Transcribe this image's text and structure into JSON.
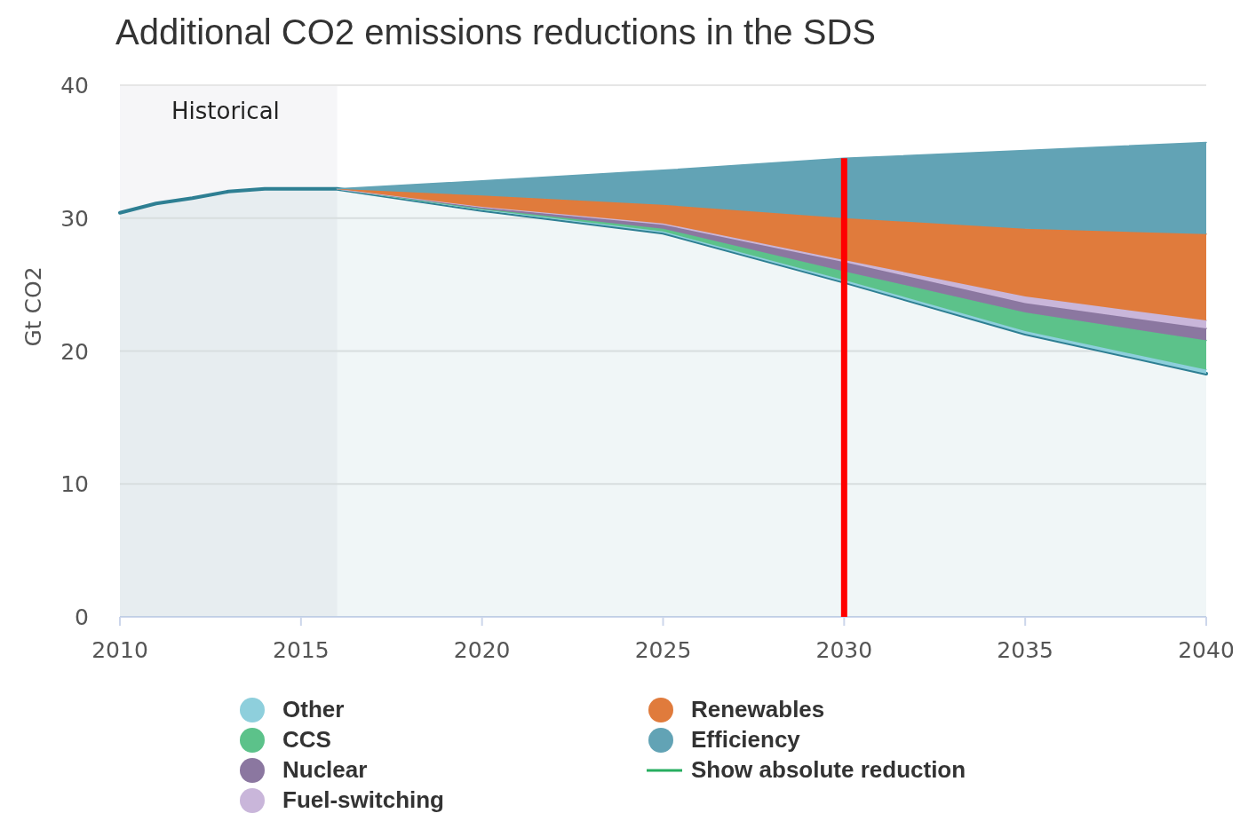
{
  "chart_data": {
    "type": "area",
    "title": "Additional CO2 emissions reductions in the SDS",
    "ylabel": "Gt CO2",
    "x": [
      2010,
      2011,
      2012,
      2013,
      2014,
      2015,
      2016,
      2020,
      2025,
      2030,
      2035,
      2040
    ],
    "stacked": true,
    "series": [
      {
        "type": "area",
        "color": "#2e7f93",
        "values": [
          30.4,
          31.1,
          31.5,
          32.0,
          32.2,
          32.2,
          32.2,
          30.6,
          28.9,
          25.2,
          21.3,
          18.3
        ]
      },
      {
        "name": "Other",
        "color": "#8ecfdc",
        "values": [
          null,
          null,
          null,
          null,
          null,
          null,
          0,
          0.05,
          0.1,
          0.15,
          0.2,
          0.3
        ]
      },
      {
        "name": "CCS",
        "color": "#5cc28a",
        "values": [
          null,
          null,
          null,
          null,
          null,
          null,
          0,
          0.05,
          0.2,
          0.65,
          1.4,
          2.2
        ]
      },
      {
        "name": "Nuclear",
        "color": "#8b77a0",
        "values": [
          null,
          null,
          null,
          null,
          null,
          null,
          0,
          0.1,
          0.3,
          0.7,
          0.7,
          0.9
        ]
      },
      {
        "name": "Fuel-switching",
        "color": "#c9b6da",
        "values": [
          null,
          null,
          null,
          null,
          null,
          null,
          0,
          0.05,
          0.1,
          0.15,
          0.5,
          0.6
        ]
      },
      {
        "name": "Renewables",
        "color": "#e07b3c",
        "values": [
          null,
          null,
          null,
          null,
          null,
          null,
          0,
          0.85,
          1.4,
          3.15,
          5.1,
          6.5
        ]
      },
      {
        "name": "Efficiency",
        "color": "#62a3b5",
        "values": [
          null,
          null,
          null,
          null,
          null,
          null,
          0,
          1.1,
          2.6,
          4.5,
          5.9,
          6.9
        ]
      },
      {
        "name": "Show absolute reduction",
        "type": "line",
        "color": "#27ae60",
        "values": [
          null,
          null,
          null,
          null,
          null,
          null,
          null,
          null,
          null,
          null,
          null,
          null
        ]
      }
    ],
    "xlim": [
      2010,
      2040
    ],
    "xticks": [
      2010,
      2015,
      2020,
      2025,
      2030,
      2035,
      2040
    ],
    "ylim": [
      0,
      40
    ],
    "yticks": [
      0,
      10,
      20,
      30,
      40
    ],
    "bands": [
      {
        "axis": "x",
        "from": 2010,
        "to": 2016,
        "label": "Historical",
        "color": "#f6f6f8"
      }
    ],
    "ref_lines": [
      {
        "axis": "x",
        "value": 2030,
        "color": "#ff0000"
      }
    ],
    "grid": "y",
    "legend": "bottom"
  }
}
